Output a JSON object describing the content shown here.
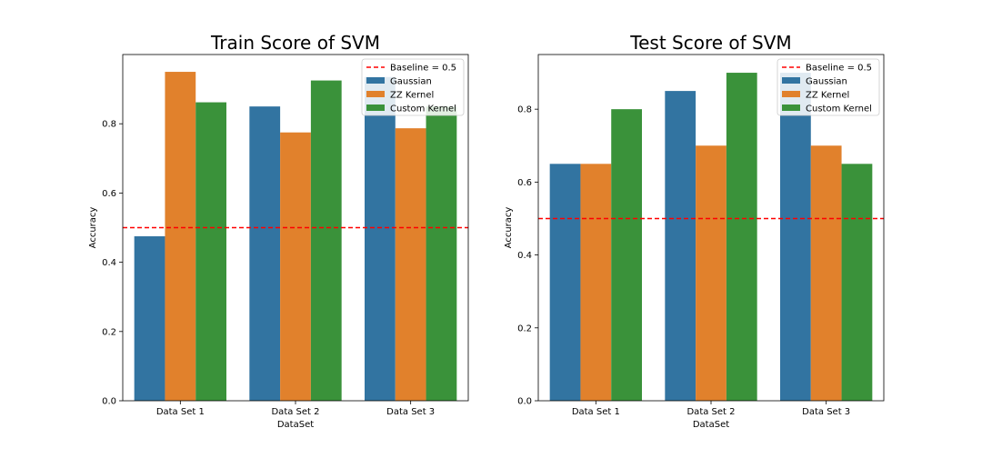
{
  "chart_data": [
    {
      "type": "bar",
      "title": "Train Score of SVM",
      "xlabel": "DataSet",
      "ylabel": "Accuracy",
      "ylim": [
        0,
        1.0
      ],
      "yticks": [
        "0.0",
        "0.2",
        "0.4",
        "0.6",
        "0.8"
      ],
      "categories": [
        "Data Set 1",
        "Data Set 2",
        "Data Set 3"
      ],
      "series": [
        {
          "name": "Gaussian",
          "color": "#3274a1",
          "values": [
            0.475,
            0.85,
            0.935
          ]
        },
        {
          "name": "ZZ Kernel",
          "color": "#e1812c",
          "values": [
            0.95,
            0.775,
            0.787
          ]
        },
        {
          "name": "Custom Kernel",
          "color": "#3a923a",
          "values": [
            0.862,
            0.925,
            0.85
          ]
        }
      ],
      "baseline": {
        "label": "Baseline = 0.5",
        "value": 0.5,
        "color": "#ff0000"
      },
      "legend": "top-right",
      "grid": false
    },
    {
      "type": "bar",
      "title": "Test Score of SVM",
      "xlabel": "DataSet",
      "ylabel": "Accuracy",
      "ylim": [
        0,
        0.95
      ],
      "yticks": [
        "0.0",
        "0.2",
        "0.4",
        "0.6",
        "0.8"
      ],
      "categories": [
        "Data Set 1",
        "Data Set 2",
        "Data Set 3"
      ],
      "series": [
        {
          "name": "Gaussian",
          "color": "#3274a1",
          "values": [
            0.65,
            0.85,
            0.9
          ]
        },
        {
          "name": "ZZ Kernel",
          "color": "#e1812c",
          "values": [
            0.65,
            0.7,
            0.7
          ]
        },
        {
          "name": "Custom Kernel",
          "color": "#3a923a",
          "values": [
            0.8,
            0.9,
            0.65
          ]
        }
      ],
      "baseline": {
        "label": "Baseline = 0.5",
        "value": 0.5,
        "color": "#ff0000"
      },
      "legend": "top-right",
      "grid": false
    }
  ]
}
